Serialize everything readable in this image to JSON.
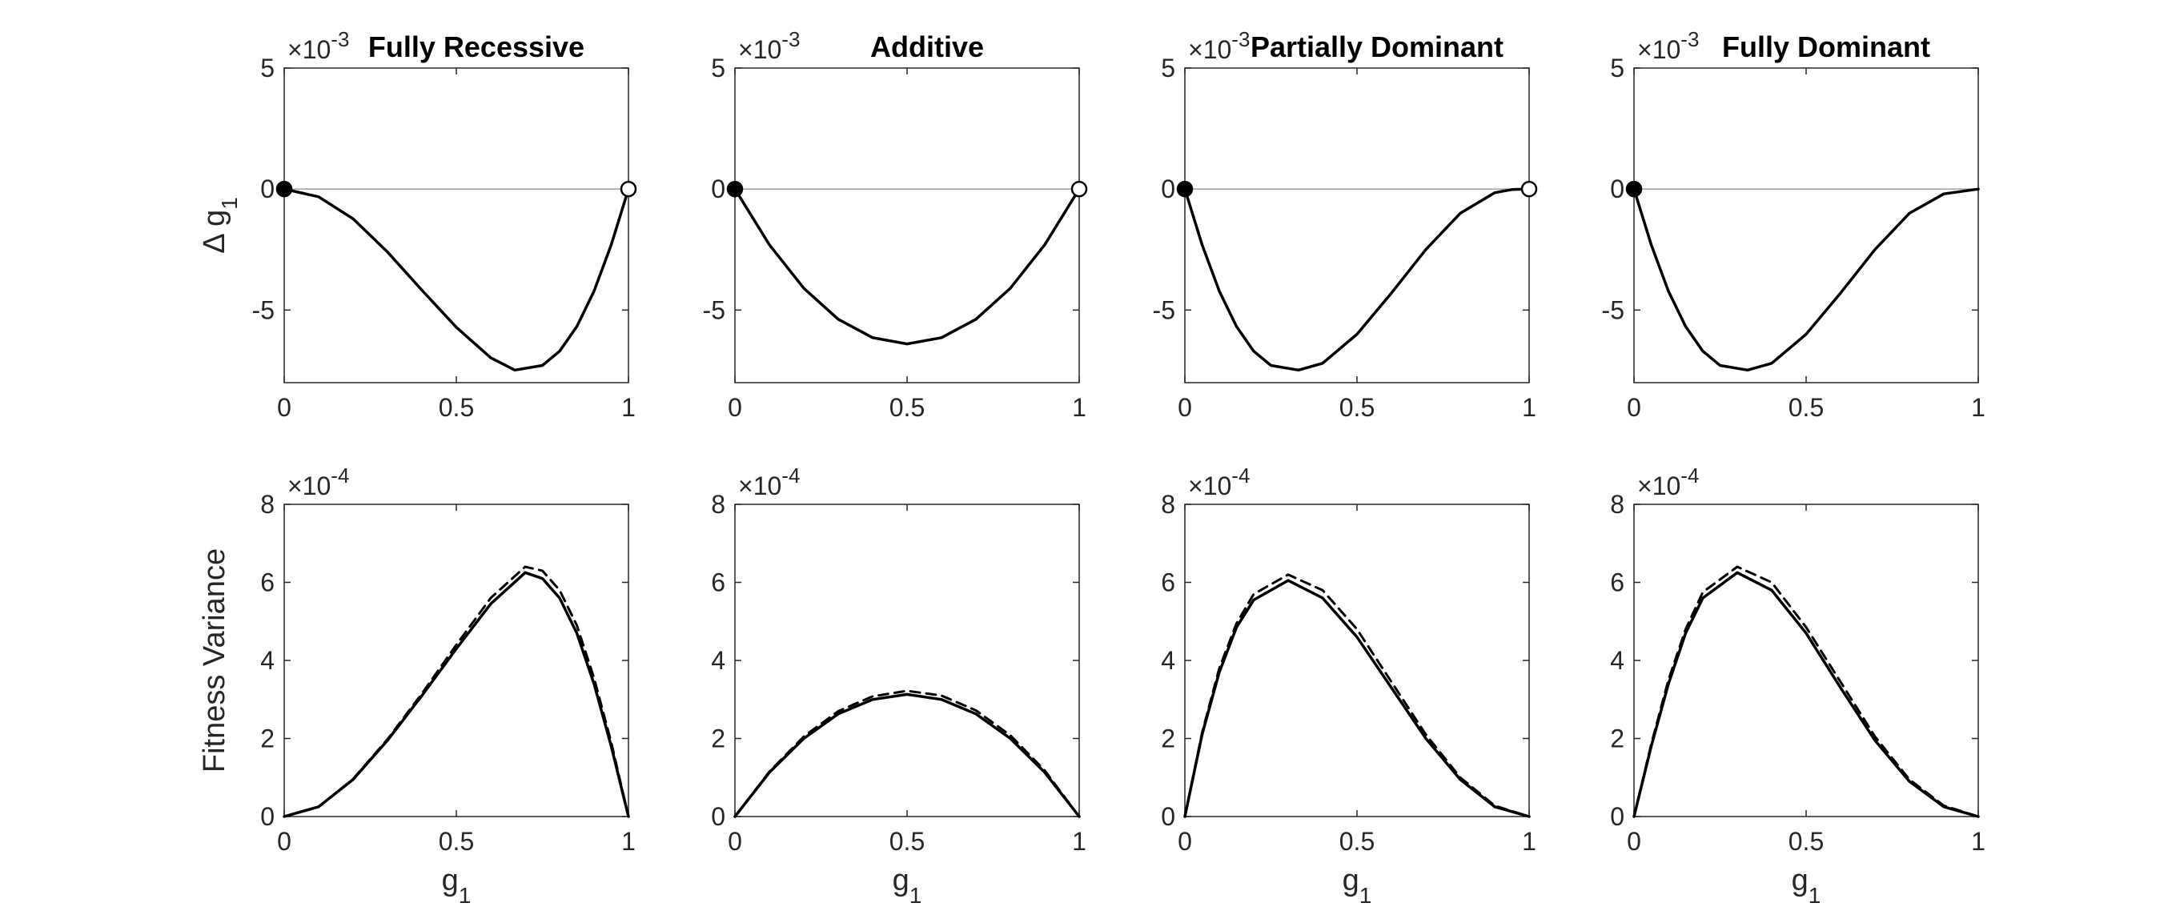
{
  "chart_data": [
    {
      "type": "line",
      "row": "top",
      "col": 0,
      "title": "Fully Recessive",
      "ylabel": "Δ g1",
      "xlabel": "",
      "xlim": [
        0,
        1
      ],
      "ylim": [
        -8,
        5
      ],
      "yscale_label": "×10-3",
      "xticks": [
        "0",
        "0.5",
        "1"
      ],
      "yticks": [
        "-5",
        "0",
        "5"
      ],
      "series": [
        {
          "style": "solid",
          "x": [
            0,
            0.1,
            0.2,
            0.3,
            0.4,
            0.5,
            0.6,
            0.67,
            0.75,
            0.8,
            0.85,
            0.9,
            0.95,
            1.0
          ],
          "y": [
            0,
            -0.32,
            -1.23,
            -2.6,
            -4.18,
            -5.71,
            -6.97,
            -7.48,
            -7.29,
            -6.7,
            -5.68,
            -4.22,
            -2.3,
            0
          ]
        }
      ],
      "markers": [
        {
          "x": 0,
          "y": 0,
          "fill": "filled"
        },
        {
          "x": 1,
          "y": 0,
          "fill": "open"
        }
      ],
      "zero_line": true
    },
    {
      "type": "line",
      "row": "top",
      "col": 1,
      "title": "Additive",
      "ylabel": "",
      "xlabel": "",
      "xlim": [
        0,
        1
      ],
      "ylim": [
        -8,
        5
      ],
      "yscale_label": "×10-3",
      "xticks": [
        "0",
        "0.5",
        "1"
      ],
      "yticks": [
        "-5",
        "0",
        "5"
      ],
      "series": [
        {
          "style": "solid",
          "x": [
            0,
            0.1,
            0.2,
            0.3,
            0.4,
            0.5,
            0.6,
            0.7,
            0.8,
            0.9,
            1.0
          ],
          "y": [
            0,
            -2.3,
            -4.1,
            -5.38,
            -6.14,
            -6.4,
            -6.14,
            -5.38,
            -4.1,
            -2.3,
            0
          ]
        }
      ],
      "markers": [
        {
          "x": 0,
          "y": 0,
          "fill": "filled"
        },
        {
          "x": 1,
          "y": 0,
          "fill": "open"
        }
      ],
      "zero_line": true
    },
    {
      "type": "line",
      "row": "top",
      "col": 2,
      "title": "Partially Dominant",
      "ylabel": "",
      "xlabel": "",
      "xlim": [
        0,
        1
      ],
      "ylim": [
        -8,
        5
      ],
      "yscale_label": "×10-3",
      "xticks": [
        "0",
        "0.5",
        "1"
      ],
      "yticks": [
        "-5",
        "0",
        "5"
      ],
      "series": [
        {
          "style": "solid",
          "x": [
            0,
            0.05,
            0.1,
            0.15,
            0.2,
            0.25,
            0.33,
            0.4,
            0.5,
            0.6,
            0.7,
            0.8,
            0.9,
            0.95,
            1.0
          ],
          "y": [
            0,
            -2.3,
            -4.22,
            -5.68,
            -6.7,
            -7.29,
            -7.48,
            -7.2,
            -6.0,
            -4.3,
            -2.5,
            -1.0,
            -0.15,
            -0.02,
            0
          ]
        }
      ],
      "markers": [
        {
          "x": 0,
          "y": 0,
          "fill": "filled"
        },
        {
          "x": 1,
          "y": 0,
          "fill": "open"
        }
      ],
      "zero_line": true
    },
    {
      "type": "line",
      "row": "top",
      "col": 3,
      "title": "Fully Dominant",
      "ylabel": "",
      "xlabel": "",
      "xlim": [
        0,
        1
      ],
      "ylim": [
        -8,
        5
      ],
      "yscale_label": "×10-3",
      "xticks": [
        "0",
        "0.5",
        "1"
      ],
      "yticks": [
        "-5",
        "0",
        "5"
      ],
      "series": [
        {
          "style": "solid",
          "x": [
            0,
            0.05,
            0.1,
            0.15,
            0.2,
            0.25,
            0.33,
            0.4,
            0.5,
            0.6,
            0.7,
            0.8,
            0.9,
            1.0
          ],
          "y": [
            0,
            -2.3,
            -4.22,
            -5.68,
            -6.7,
            -7.29,
            -7.48,
            -7.2,
            -6.0,
            -4.3,
            -2.5,
            -1.0,
            -0.2,
            0
          ]
        }
      ],
      "markers": [
        {
          "x": 0,
          "y": 0,
          "fill": "filled"
        }
      ],
      "zero_line": true
    },
    {
      "type": "line",
      "row": "bottom",
      "col": 0,
      "title": "",
      "ylabel": "Fitness Variance",
      "xlabel": "g1",
      "xlim": [
        0,
        1
      ],
      "ylim": [
        0,
        8
      ],
      "yscale_label": "×10-4",
      "xticks": [
        "0",
        "0.5",
        "1"
      ],
      "yticks": [
        "0",
        "2",
        "4",
        "6",
        "8"
      ],
      "series": [
        {
          "style": "solid",
          "x": [
            0,
            0.1,
            0.2,
            0.3,
            0.4,
            0.5,
            0.6,
            0.7,
            0.75,
            0.8,
            0.85,
            0.9,
            0.95,
            1.0
          ],
          "y": [
            0,
            0.25,
            0.95,
            1.95,
            3.1,
            4.3,
            5.45,
            6.25,
            6.1,
            5.6,
            4.7,
            3.4,
            1.8,
            0
          ]
        },
        {
          "style": "dashed",
          "x": [
            0,
            0.1,
            0.2,
            0.3,
            0.4,
            0.5,
            0.6,
            0.7,
            0.75,
            0.8,
            0.85,
            0.9,
            0.95,
            1.0
          ],
          "y": [
            0,
            0.25,
            0.96,
            1.98,
            3.15,
            4.4,
            5.6,
            6.4,
            6.3,
            5.8,
            4.9,
            3.55,
            1.9,
            0
          ]
        }
      ],
      "markers": [],
      "zero_line": false
    },
    {
      "type": "line",
      "row": "bottom",
      "col": 1,
      "title": "",
      "ylabel": "",
      "xlabel": "g1",
      "xlim": [
        0,
        1
      ],
      "ylim": [
        0,
        8
      ],
      "yscale_label": "×10-4",
      "xticks": [
        "0",
        "0.5",
        "1"
      ],
      "yticks": [
        "0",
        "2",
        "4",
        "6",
        "8"
      ],
      "series": [
        {
          "style": "solid",
          "x": [
            0,
            0.1,
            0.2,
            0.3,
            0.4,
            0.5,
            0.6,
            0.7,
            0.8,
            0.9,
            1.0
          ],
          "y": [
            0,
            1.13,
            2.0,
            2.63,
            3.0,
            3.13,
            3.0,
            2.63,
            2.0,
            1.13,
            0
          ]
        },
        {
          "style": "dashed",
          "x": [
            0,
            0.1,
            0.2,
            0.3,
            0.4,
            0.5,
            0.6,
            0.7,
            0.8,
            0.9,
            1.0
          ],
          "y": [
            0,
            1.15,
            2.05,
            2.7,
            3.08,
            3.22,
            3.1,
            2.72,
            2.08,
            1.18,
            0
          ]
        }
      ],
      "markers": [],
      "zero_line": false
    },
    {
      "type": "line",
      "row": "bottom",
      "col": 2,
      "title": "",
      "ylabel": "",
      "xlabel": "g1",
      "xlim": [
        0,
        1
      ],
      "ylim": [
        0,
        8
      ],
      "yscale_label": "×10-4",
      "xticks": [
        "0",
        "0.5",
        "1"
      ],
      "yticks": [
        "0",
        "2",
        "4",
        "6",
        "8"
      ],
      "series": [
        {
          "style": "solid",
          "x": [
            0,
            0.05,
            0.1,
            0.15,
            0.2,
            0.3,
            0.4,
            0.5,
            0.6,
            0.7,
            0.8,
            0.9,
            1.0
          ],
          "y": [
            0,
            2.1,
            3.7,
            4.85,
            5.55,
            6.05,
            5.6,
            4.6,
            3.3,
            2.0,
            0.95,
            0.25,
            0
          ]
        },
        {
          "style": "dashed",
          "x": [
            0,
            0.05,
            0.1,
            0.15,
            0.2,
            0.3,
            0.4,
            0.5,
            0.6,
            0.7,
            0.8,
            0.9,
            1.0
          ],
          "y": [
            0,
            2.15,
            3.8,
            4.95,
            5.7,
            6.2,
            5.8,
            4.8,
            3.45,
            2.1,
            1.0,
            0.28,
            0
          ]
        }
      ],
      "markers": [],
      "zero_line": false
    },
    {
      "type": "line",
      "row": "bottom",
      "col": 3,
      "title": "",
      "ylabel": "",
      "xlabel": "g1",
      "xlim": [
        0,
        1
      ],
      "ylim": [
        0,
        8
      ],
      "yscale_label": "×10-4",
      "xticks": [
        "0",
        "0.5",
        "1"
      ],
      "yticks": [
        "0",
        "2",
        "4",
        "6",
        "8"
      ],
      "series": [
        {
          "style": "solid",
          "x": [
            0,
            0.05,
            0.1,
            0.15,
            0.2,
            0.3,
            0.4,
            0.5,
            0.6,
            0.7,
            0.8,
            0.9,
            1.0
          ],
          "y": [
            0,
            1.8,
            3.4,
            4.7,
            5.6,
            6.25,
            5.8,
            4.7,
            3.3,
            1.95,
            0.9,
            0.25,
            0
          ]
        },
        {
          "style": "dashed",
          "x": [
            0,
            0.05,
            0.1,
            0.15,
            0.2,
            0.3,
            0.4,
            0.5,
            0.6,
            0.7,
            0.8,
            0.9,
            1.0
          ],
          "y": [
            0,
            1.85,
            3.5,
            4.8,
            5.75,
            6.4,
            6.0,
            4.85,
            3.45,
            2.05,
            0.95,
            0.28,
            0
          ]
        }
      ],
      "markers": [],
      "zero_line": false
    }
  ]
}
